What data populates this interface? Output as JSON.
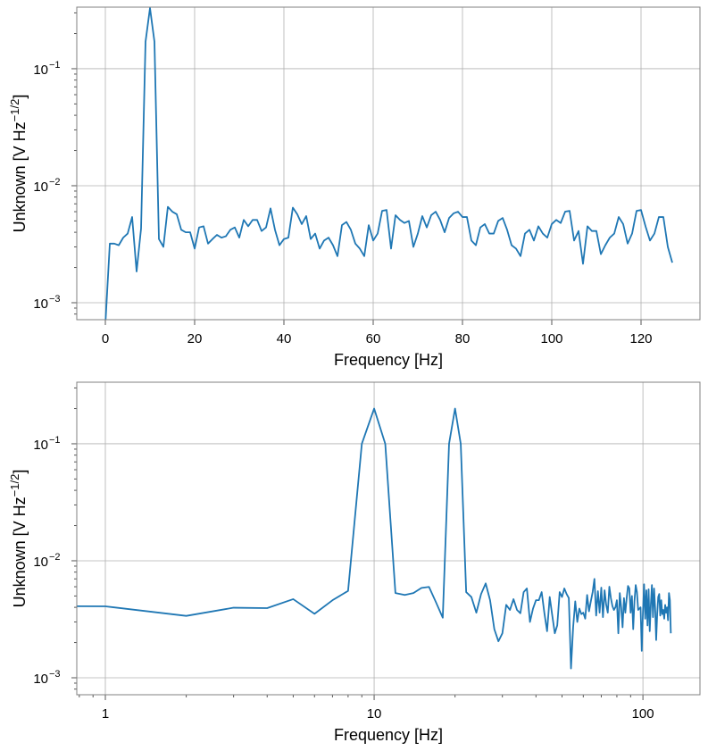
{
  "chart_data": [
    {
      "type": "line",
      "xscale": "linear",
      "yscale": "log",
      "xlim": [
        -6.4,
        133.2
      ],
      "ylim": [
        0.000716,
        0.336
      ],
      "grid": true,
      "color": "#1f77b4",
      "xlabel": "Frequency [Hz]",
      "ylabel": "Unknown [V Hz",
      "ylabel_sup": "−1/2",
      "ylabel_end": "]",
      "xticks": [
        {
          "value": 0,
          "label": "0"
        },
        {
          "value": 20,
          "label": "20"
        },
        {
          "value": 40,
          "label": "40"
        },
        {
          "value": 60,
          "label": "60"
        },
        {
          "value": 80,
          "label": "80"
        },
        {
          "value": 100,
          "label": "100"
        },
        {
          "value": 120,
          "label": "120"
        }
      ],
      "yticks": [
        {
          "value": 0.1,
          "base": "10",
          "exp": "−1"
        },
        {
          "value": 0.01,
          "base": "10",
          "exp": "−2"
        },
        {
          "value": 0.001,
          "base": "10",
          "exp": "−3"
        }
      ],
      "x": [
        0,
        1,
        2,
        3,
        4,
        5,
        6,
        7,
        8,
        9,
        10,
        11,
        12,
        13,
        14,
        15,
        16,
        17,
        18,
        19,
        20,
        21,
        22,
        23,
        24,
        25,
        26,
        27,
        28,
        29,
        30,
        31,
        32,
        33,
        34,
        35,
        36,
        37,
        38,
        39,
        40,
        41,
        42,
        43,
        44,
        45,
        46,
        47,
        48,
        49,
        50,
        51,
        52,
        53,
        54,
        55,
        56,
        57,
        58,
        59,
        60,
        61,
        62,
        63,
        64,
        65,
        66,
        67,
        68,
        69,
        70,
        71,
        72,
        73,
        74,
        75,
        76,
        77,
        78,
        79,
        80,
        81,
        82,
        83,
        84,
        85,
        86,
        87,
        88,
        89,
        90,
        91,
        92,
        93,
        94,
        95,
        96,
        97,
        98,
        99,
        100,
        101,
        102,
        103,
        104,
        105,
        106,
        107,
        108,
        109,
        110,
        111,
        112,
        113,
        114,
        115,
        116,
        117,
        118,
        119,
        120,
        121,
        122,
        123,
        124,
        125,
        126,
        127
      ],
      "y": [
        0.00065,
        0.0032,
        0.0032,
        0.0031,
        0.0036,
        0.0039,
        0.0054,
        0.00185,
        0.0043,
        0.17,
        0.33,
        0.17,
        0.0035,
        0.003,
        0.0066,
        0.006,
        0.0057,
        0.0042,
        0.004,
        0.004,
        0.0029,
        0.0044,
        0.0045,
        0.0032,
        0.0035,
        0.0038,
        0.0036,
        0.0037,
        0.0042,
        0.0044,
        0.0036,
        0.0051,
        0.0045,
        0.0051,
        0.0051,
        0.0041,
        0.0044,
        0.0064,
        0.0042,
        0.0031,
        0.0035,
        0.0036,
        0.0065,
        0.0057,
        0.0047,
        0.0055,
        0.0035,
        0.0039,
        0.0029,
        0.0034,
        0.0036,
        0.0031,
        0.0025,
        0.0046,
        0.0049,
        0.0042,
        0.0032,
        0.0029,
        0.0025,
        0.0046,
        0.0034,
        0.0039,
        0.0061,
        0.0062,
        0.0029,
        0.0056,
        0.0051,
        0.0048,
        0.005,
        0.003,
        0.0039,
        0.0055,
        0.0044,
        0.0056,
        0.006,
        0.0051,
        0.004,
        0.0053,
        0.0058,
        0.006,
        0.0054,
        0.0054,
        0.0034,
        0.0031,
        0.0044,
        0.0047,
        0.0039,
        0.0039,
        0.005,
        0.0053,
        0.0042,
        0.0031,
        0.0029,
        0.0025,
        0.0039,
        0.0042,
        0.0034,
        0.0045,
        0.0039,
        0.0036,
        0.0047,
        0.0051,
        0.0048,
        0.006,
        0.0061,
        0.0034,
        0.0041,
        0.00215,
        0.0045,
        0.0041,
        0.0041,
        0.0026,
        0.0031,
        0.0036,
        0.0039,
        0.0054,
        0.0047,
        0.0032,
        0.0039,
        0.0061,
        0.0062,
        0.0045,
        0.0034,
        0.0039,
        0.0054,
        0.0054,
        0.003,
        0.0022
      ]
    },
    {
      "type": "line",
      "xscale": "log",
      "yscale": "log",
      "xlim": [
        0.783,
        163
      ],
      "ylim": [
        0.000716,
        0.336
      ],
      "grid": true,
      "color": "#1f77b4",
      "xlabel": "Frequency [Hz]",
      "ylabel": "Unknown [V Hz",
      "ylabel_sup": "−1/2",
      "ylabel_end": "]",
      "xticks": [
        {
          "value": 1,
          "label": "1"
        },
        {
          "value": 10,
          "label": "10"
        },
        {
          "value": 100,
          "label": "100"
        }
      ],
      "yticks": [
        {
          "value": 0.1,
          "base": "10",
          "exp": "−1"
        },
        {
          "value": 0.01,
          "base": "10",
          "exp": "−2"
        },
        {
          "value": 0.001,
          "base": "10",
          "exp": "−3"
        }
      ],
      "x": [
        0,
        1,
        2,
        3,
        4,
        5,
        6,
        7,
        8,
        9,
        10,
        11,
        12,
        13,
        14,
        15,
        16,
        17,
        18,
        19,
        20,
        21,
        22,
        23,
        24,
        25,
        26,
        27,
        28,
        29,
        30,
        31,
        32,
        33,
        34,
        35,
        36,
        37,
        38,
        39,
        40,
        41,
        42,
        43,
        44,
        45,
        46,
        47,
        48,
        49,
        50,
        51,
        52,
        53,
        54,
        55,
        56,
        57,
        58,
        59,
        60,
        61,
        62,
        63,
        64,
        65,
        66,
        67,
        68,
        69,
        70,
        71,
        72,
        73,
        74,
        75,
        76,
        77,
        78,
        79,
        80,
        81,
        82,
        83,
        84,
        85,
        86,
        87,
        88,
        89,
        90,
        91,
        92,
        93,
        94,
        95,
        96,
        97,
        98,
        99,
        100,
        101,
        102,
        103,
        104,
        105,
        106,
        107,
        108,
        109,
        110,
        111,
        112,
        113,
        114,
        115,
        116,
        117,
        118,
        119,
        120,
        121,
        122,
        123,
        124,
        125,
        126,
        127
      ],
      "y": [
        0.0041,
        0.00408,
        0.00338,
        0.00397,
        0.00394,
        0.0047,
        0.00352,
        0.0046,
        0.00553,
        0.1,
        0.2,
        0.1,
        0.0053,
        0.0051,
        0.0053,
        0.00586,
        0.00598,
        0.0044,
        0.00326,
        0.1,
        0.2,
        0.1,
        0.0054,
        0.0049,
        0.0036,
        0.0052,
        0.0064,
        0.0046,
        0.0026,
        0.00205,
        0.0024,
        0.0042,
        0.0038,
        0.0047,
        0.0038,
        0.00356,
        0.0054,
        0.0058,
        0.003,
        0.0039,
        0.0046,
        0.0046,
        0.0054,
        0.00356,
        0.0025,
        0.0049,
        0.0034,
        0.0024,
        0.0028,
        0.0054,
        0.0049,
        0.0058,
        0.0052,
        0.0048,
        0.0012,
        0.0027,
        0.0045,
        0.003,
        0.0039,
        0.0035,
        0.0036,
        0.0032,
        0.0051,
        0.0037,
        0.0045,
        0.0054,
        0.007,
        0.0034,
        0.0055,
        0.0036,
        0.0059,
        0.0033,
        0.0056,
        0.0042,
        0.0036,
        0.006,
        0.0048,
        0.0041,
        0.0038,
        0.004,
        0.0046,
        0.0024,
        0.0053,
        0.004,
        0.0027,
        0.0048,
        0.0036,
        0.0048,
        0.0061,
        0.0058,
        0.0036,
        0.005,
        0.0026,
        0.0045,
        0.0062,
        0.0054,
        0.0038,
        0.0039,
        0.004,
        0.0017,
        0.0036,
        0.0063,
        0.0032,
        0.0056,
        0.0028,
        0.0057,
        0.0025,
        0.0042,
        0.0062,
        0.0033,
        0.0058,
        0.004,
        0.0021,
        0.0035,
        0.0049,
        0.0052,
        0.0034,
        0.0046,
        0.0035,
        0.0038,
        0.0032,
        0.0042,
        0.0036,
        0.004,
        0.0031,
        0.0053,
        0.0046,
        0.0024
      ]
    }
  ]
}
